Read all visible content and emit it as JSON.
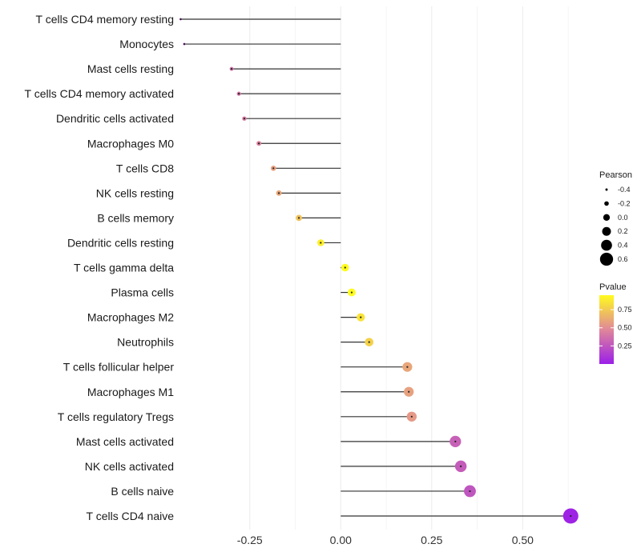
{
  "chart_data": {
    "type": "lollipop",
    "title": "",
    "xlabel": "",
    "ylabel": "",
    "xlim": [
      -0.43,
      0.66
    ],
    "xticks": [
      -0.25,
      0.0,
      0.25,
      0.5
    ],
    "xtick_labels": [
      "-0.25",
      "0.00",
      "0.25",
      "0.50"
    ],
    "grid": true,
    "categories": [
      "T cells CD4 memory resting",
      "Monocytes",
      "Mast cells resting",
      "T cells CD4 memory activated",
      "Dendritic cells activated",
      "Macrophages M0",
      "T cells CD8",
      "NK cells resting",
      "B cells memory",
      "Dendritic cells resting",
      "T cells gamma delta",
      "Plasma cells",
      "Macrophages M2",
      "Neutrophils",
      "T cells follicular helper",
      "Macrophages M1",
      "T cells regulatory  Tregs ",
      "Mast cells activated",
      "NK cells activated",
      "B cells naive",
      "T cells CD4 naive"
    ],
    "pearson": [
      -0.44,
      -0.43,
      -0.3,
      -0.28,
      -0.265,
      -0.225,
      -0.185,
      -0.17,
      -0.115,
      -0.055,
      0.012,
      0.03,
      0.055,
      0.078,
      0.183,
      0.187,
      0.195,
      0.315,
      0.33,
      0.355,
      0.632
    ],
    "pvalue": [
      0.12,
      0.12,
      0.38,
      0.4,
      0.42,
      0.45,
      0.58,
      0.6,
      0.72,
      0.9,
      0.98,
      0.95,
      0.85,
      0.78,
      0.6,
      0.58,
      0.55,
      0.3,
      0.28,
      0.25,
      0.02
    ],
    "legend_size": {
      "title": "Pearson",
      "values": [
        -0.4,
        -0.2,
        0.0,
        0.2,
        0.4,
        0.6
      ],
      "labels": [
        "-0.4",
        "-0.2",
        "0.0",
        "0.2",
        "0.4",
        "0.6"
      ]
    },
    "legend_color": {
      "title": "Pvalue",
      "range": [
        0.0,
        0.95
      ],
      "ticks": [
        0.25,
        0.5,
        0.75
      ],
      "labels": [
        "0.25",
        "0.50",
        "0.75"
      ],
      "low_color": "#9b1fe8",
      "mid_color": "#e0879a",
      "high_color": "#fffb1e"
    },
    "segment_color": "#333333",
    "grid_color": "#ebebeb"
  }
}
